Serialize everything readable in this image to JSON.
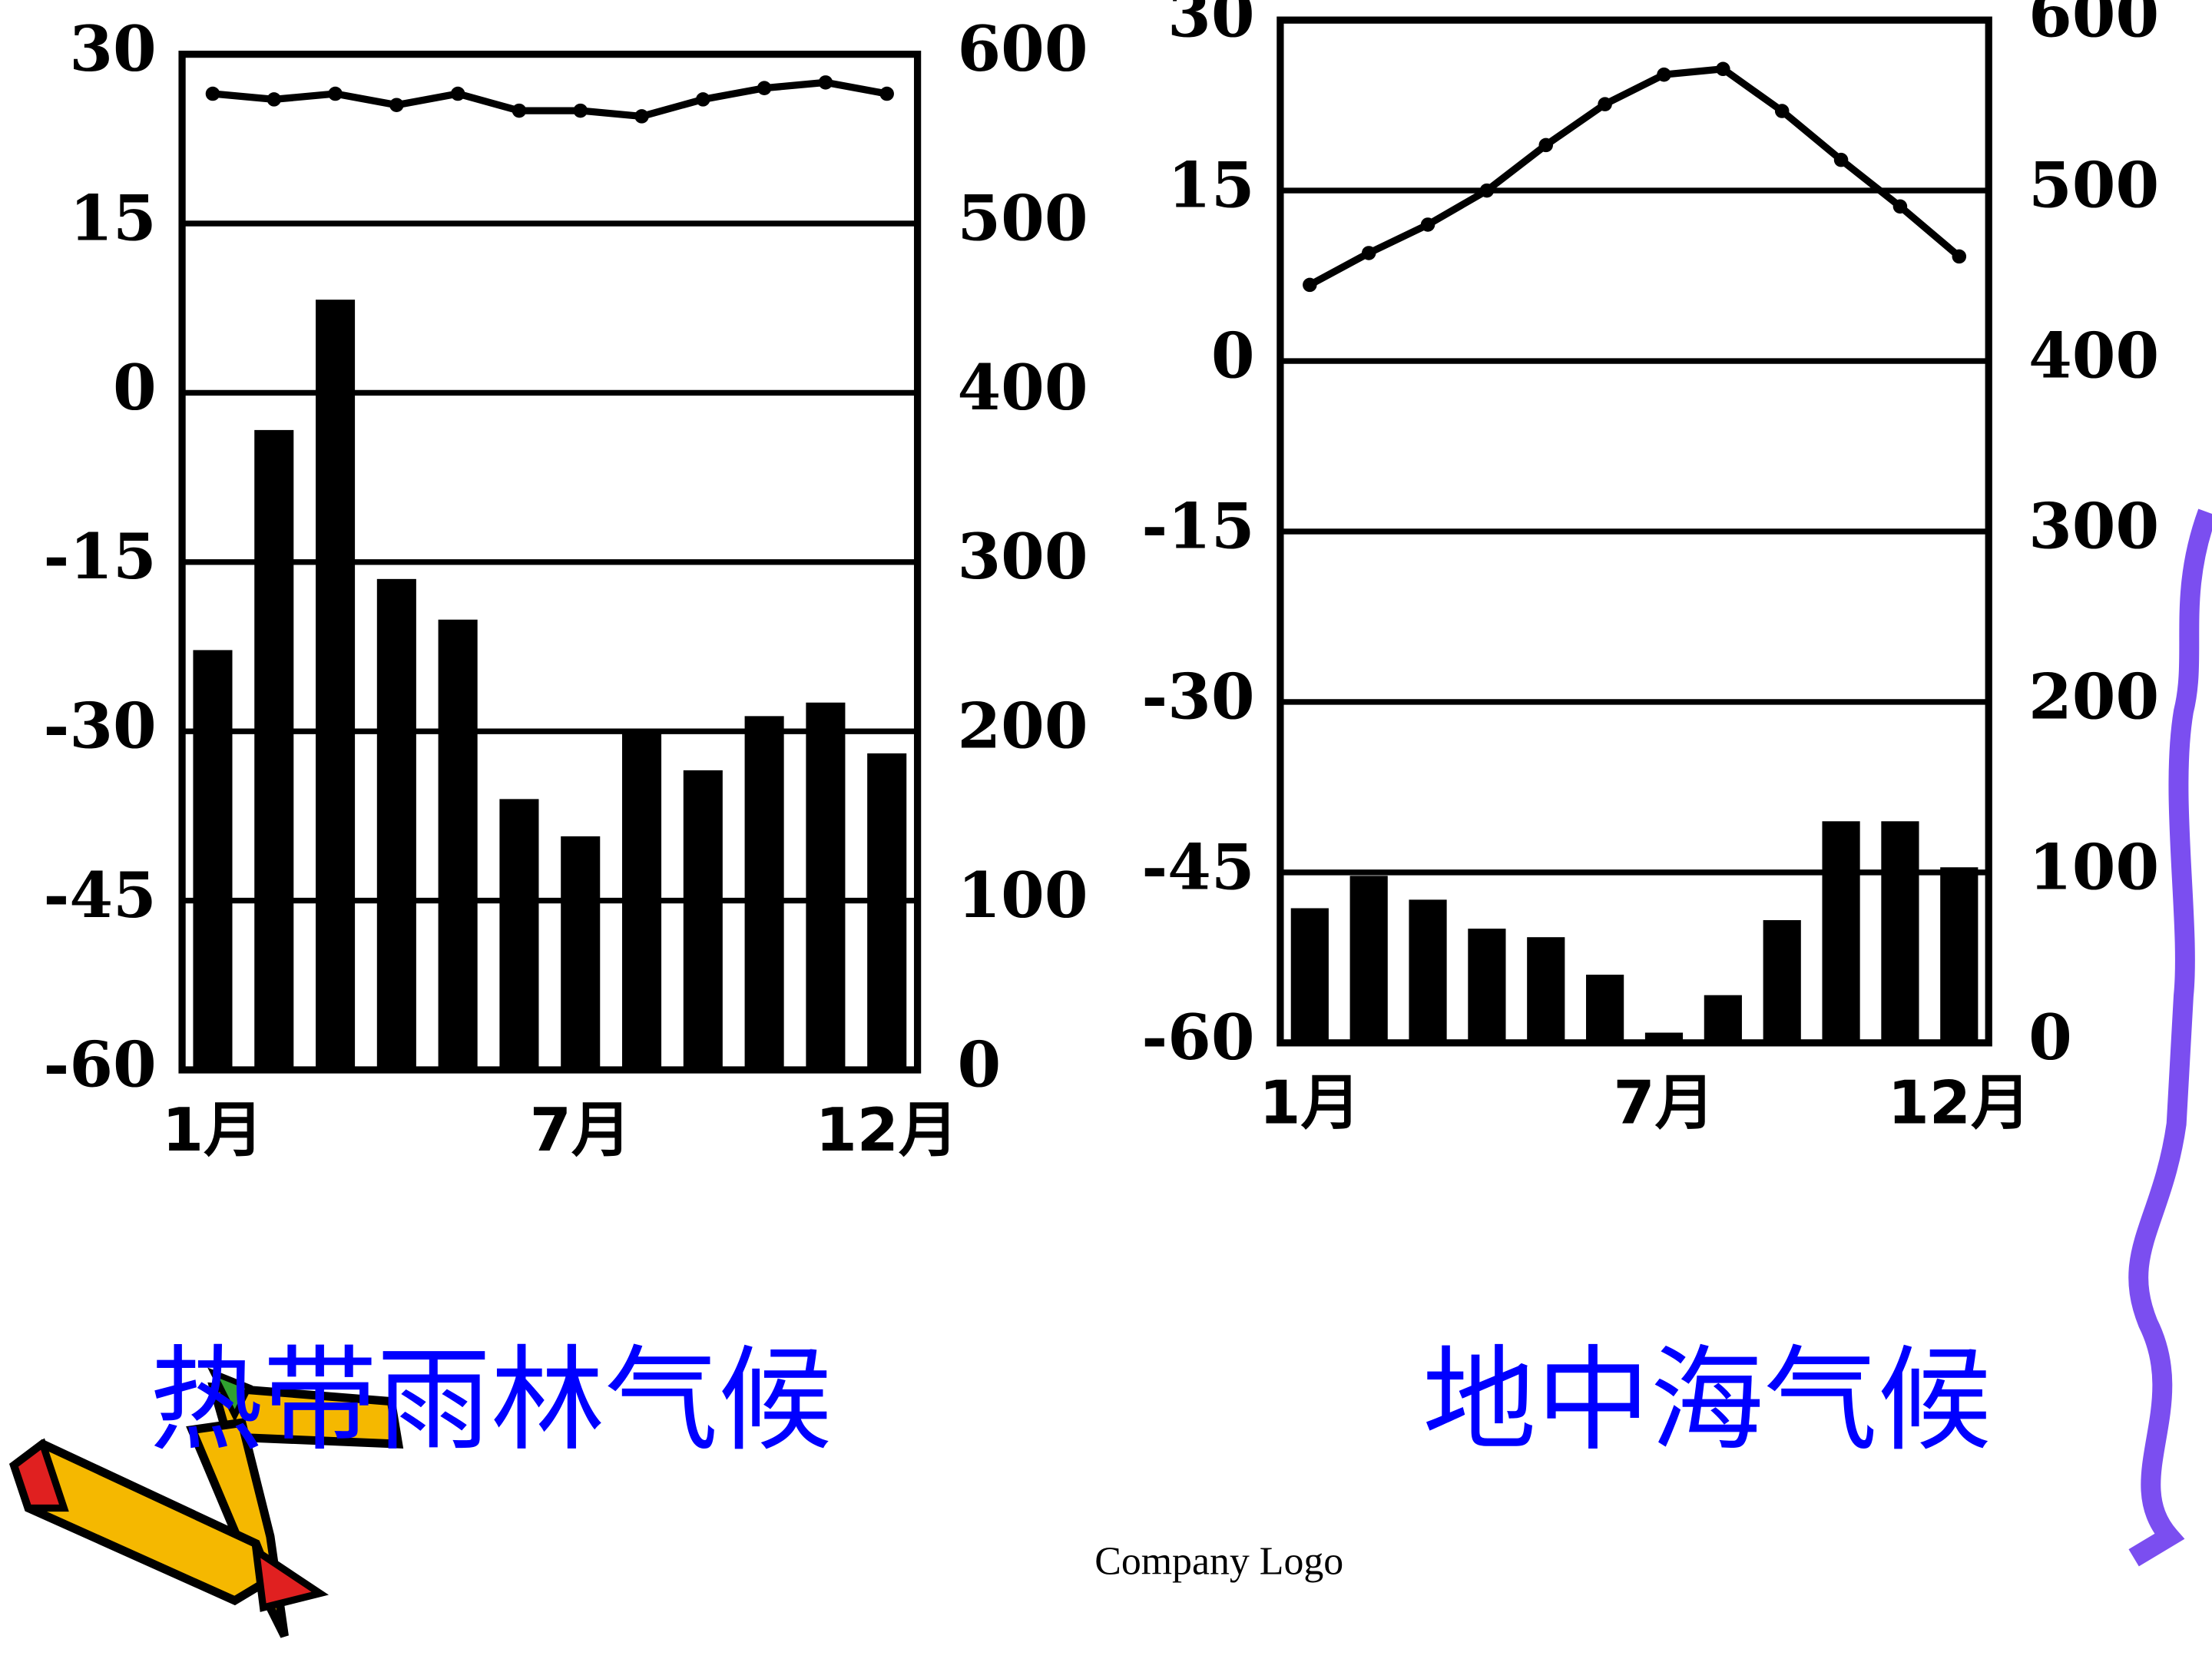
{
  "chart_data": [
    {
      "type": "combo",
      "title": "热带雨林气候",
      "categories": [
        "1月",
        null,
        null,
        null,
        null,
        null,
        "7月",
        null,
        null,
        null,
        null,
        "12月"
      ],
      "series": [
        {
          "kind": "bar",
          "axis": "y2",
          "color": "#000000",
          "values": [
            248,
            378,
            455,
            290,
            266,
            160,
            138,
            200,
            177,
            209,
            217,
            187
          ]
        },
        {
          "kind": "line",
          "color": "#000000",
          "values": [
            26.5,
            26,
            26.5,
            25.5,
            26.5,
            25,
            25,
            24.5,
            26,
            27,
            27.5,
            26.5
          ]
        }
      ],
      "ylim": [
        -60,
        30
      ],
      "yticks": [
        -60,
        -45,
        -30,
        -15,
        0,
        15,
        30
      ],
      "y2lim": [
        0,
        600
      ],
      "y2ticks": [
        0,
        100,
        200,
        300,
        400,
        500,
        600
      ],
      "grid": true
    },
    {
      "type": "combo",
      "title": "地中海气候",
      "categories": [
        "1月",
        null,
        null,
        null,
        null,
        null,
        "7月",
        null,
        null,
        null,
        null,
        "12月"
      ],
      "series": [
        {
          "kind": "bar",
          "axis": "y2",
          "color": "#000000",
          "values": [
            79,
            98,
            84,
            67,
            62,
            40,
            6,
            28,
            72,
            130,
            130,
            103
          ]
        },
        {
          "kind": "line",
          "color": "#000000",
          "values": [
            6.7,
            9.5,
            12,
            15,
            19,
            22.6,
            25.2,
            25.7,
            22,
            17.7,
            13.6,
            9.2
          ]
        }
      ],
      "ylim": [
        -60,
        30
      ],
      "yticks": [
        -60,
        -45,
        -30,
        -15,
        0,
        15,
        30
      ],
      "y2lim": [
        0,
        600
      ],
      "y2ticks": [
        0,
        100,
        200,
        300,
        400,
        500,
        600
      ],
      "grid": true
    }
  ],
  "footer": "Company Logo"
}
